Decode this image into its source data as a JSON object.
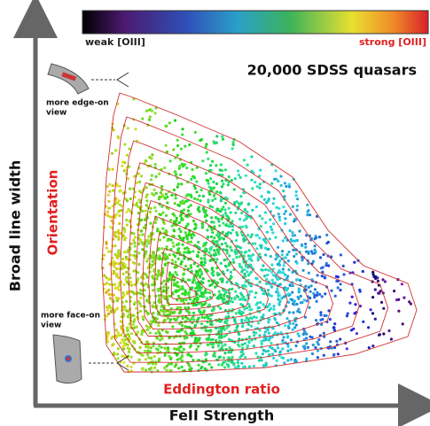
{
  "colorbar": {
    "low_label": "weak [OIII]",
    "high_label": "strong [OIII]"
  },
  "title": "20,000 SDSS quasars",
  "axes": {
    "x_label": "FeII Strength",
    "y_label": "Broad line width"
  },
  "annotations": {
    "orientation": "Orientation",
    "eddington": "Eddington ratio",
    "edge_on": [
      "more edge-on",
      "view"
    ],
    "face_on": [
      "more face-on",
      "view"
    ]
  }
}
